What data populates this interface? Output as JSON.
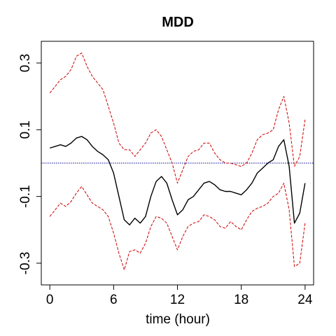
{
  "chart_data": {
    "type": "line",
    "title": "MDD",
    "xlabel": "time (hour)",
    "ylabel": "",
    "xlim": [
      -0.8,
      24.8
    ],
    "ylim": [
      -0.365,
      0.365
    ],
    "x_ticks": [
      0,
      6,
      12,
      18,
      24
    ],
    "x_tick_labels": [
      "0",
      "6",
      "12",
      "18",
      "24"
    ],
    "y_ticks": [
      0.3,
      0.1,
      -0.1,
      -0.3
    ],
    "y_tick_labels": [
      "0.3",
      "0.1",
      "-0.1",
      "-0.3"
    ],
    "grid": false,
    "legend": "none",
    "reference_line": {
      "y": 0,
      "style": "dotted",
      "color": "#00008b"
    },
    "series": [
      {
        "role": "estimate",
        "color": "#000000",
        "style": "solid",
        "x": [
          0,
          0.5,
          1,
          1.5,
          2,
          2.5,
          3,
          3.5,
          4,
          4.5,
          5,
          5.5,
          6,
          6.5,
          7,
          7.5,
          8,
          8.5,
          9,
          9.5,
          10,
          10.5,
          11,
          11.5,
          12,
          12.5,
          13,
          13.5,
          14,
          14.5,
          15,
          15.5,
          16,
          16.5,
          17,
          17.5,
          18,
          18.5,
          19,
          19.5,
          20,
          20.5,
          21,
          21.5,
          22,
          22.5,
          23,
          23.5,
          24
        ],
        "y": [
          0.045,
          0.05,
          0.055,
          0.05,
          0.06,
          0.075,
          0.08,
          0.07,
          0.05,
          0.035,
          0.025,
          0.01,
          -0.03,
          -0.1,
          -0.17,
          -0.185,
          -0.165,
          -0.18,
          -0.16,
          -0.1,
          -0.055,
          -0.04,
          -0.06,
          -0.11,
          -0.155,
          -0.14,
          -0.11,
          -0.1,
          -0.08,
          -0.06,
          -0.055,
          -0.065,
          -0.08,
          -0.085,
          -0.085,
          -0.09,
          -0.095,
          -0.08,
          -0.06,
          -0.03,
          -0.015,
          0.0,
          0.01,
          0.05,
          0.07,
          -0.01,
          -0.18,
          -0.15,
          -0.06
        ]
      },
      {
        "role": "upper-band",
        "color": "#cc0000",
        "style": "dashed",
        "x": [
          0,
          0.5,
          1,
          1.5,
          2,
          2.5,
          3,
          3.5,
          4,
          4.5,
          5,
          5.5,
          6,
          6.5,
          7,
          7.5,
          8,
          8.5,
          9,
          9.5,
          10,
          10.5,
          11,
          11.5,
          12,
          12.5,
          13,
          13.5,
          14,
          14.5,
          15,
          15.5,
          16,
          16.5,
          17,
          17.5,
          18,
          18.5,
          19,
          19.5,
          20,
          20.5,
          21,
          21.5,
          22,
          22.5,
          23,
          23.5,
          24
        ],
        "y": [
          0.21,
          0.23,
          0.25,
          0.26,
          0.28,
          0.32,
          0.33,
          0.29,
          0.26,
          0.24,
          0.22,
          0.17,
          0.12,
          0.06,
          0.04,
          0.04,
          0.02,
          0.04,
          0.06,
          0.09,
          0.1,
          0.08,
          0.04,
          0.0,
          -0.06,
          -0.02,
          0.02,
          0.035,
          0.04,
          0.06,
          0.06,
          0.03,
          0.01,
          0.0,
          0.0,
          -0.005,
          -0.01,
          0.0,
          0.03,
          0.07,
          0.085,
          0.09,
          0.1,
          0.16,
          0.2,
          0.12,
          -0.01,
          0.02,
          0.13
        ]
      },
      {
        "role": "lower-band",
        "color": "#cc0000",
        "style": "dashed",
        "x": [
          0,
          0.5,
          1,
          1.5,
          2,
          2.5,
          3,
          3.5,
          4,
          4.5,
          5,
          5.5,
          6,
          6.5,
          7,
          7.5,
          8,
          8.5,
          9,
          9.5,
          10,
          10.5,
          11,
          11.5,
          12,
          12.5,
          13,
          13.5,
          14,
          14.5,
          15,
          15.5,
          16,
          16.5,
          17,
          17.5,
          18,
          18.5,
          19,
          19.5,
          20,
          20.5,
          21,
          21.5,
          22,
          22.5,
          23,
          23.5,
          24
        ],
        "y": [
          -0.16,
          -0.14,
          -0.12,
          -0.13,
          -0.115,
          -0.09,
          -0.07,
          -0.095,
          -0.12,
          -0.13,
          -0.14,
          -0.16,
          -0.21,
          -0.27,
          -0.32,
          -0.265,
          -0.26,
          -0.27,
          -0.24,
          -0.19,
          -0.16,
          -0.165,
          -0.18,
          -0.22,
          -0.26,
          -0.22,
          -0.19,
          -0.18,
          -0.175,
          -0.155,
          -0.16,
          -0.17,
          -0.19,
          -0.195,
          -0.175,
          -0.19,
          -0.2,
          -0.17,
          -0.145,
          -0.135,
          -0.13,
          -0.12,
          -0.1,
          -0.09,
          -0.06,
          -0.14,
          -0.31,
          -0.3,
          -0.18
        ]
      }
    ]
  }
}
